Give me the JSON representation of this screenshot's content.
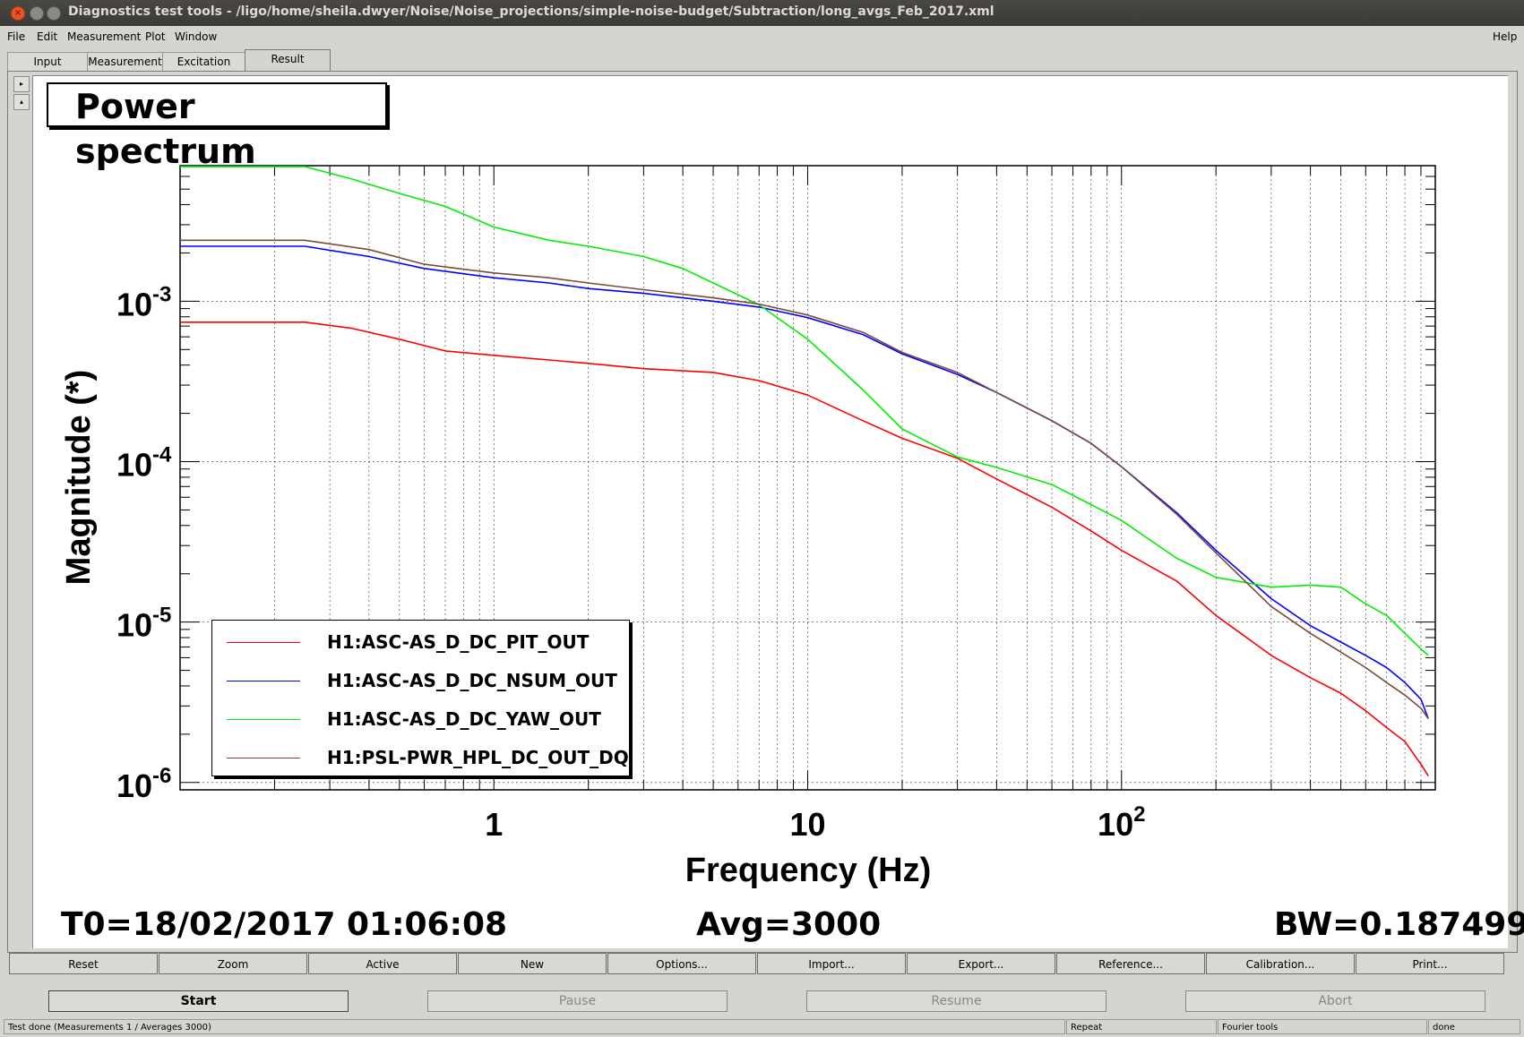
{
  "window": {
    "title": "Diagnostics test tools - /ligo/home/sheila.dwyer/Noise/Noise_projections/simple-noise-budget/Subtraction/long_avgs_Feb_2017.xml",
    "close_glyph": "×"
  },
  "menu": {
    "items": [
      "File",
      "Edit",
      "Measurement",
      "Plot",
      "Window"
    ],
    "help": "Help"
  },
  "tabs": [
    "Input",
    "Measurement",
    "Excitation",
    "Result"
  ],
  "active_tab": "Result",
  "scroll": {
    "up": "▸",
    "down": "▴"
  },
  "plot_title": "Power spectrum",
  "stats": {
    "t0": "T0=18/02/2017 01:06:08",
    "avg": "Avg=3000",
    "bw": "BW=0.187499"
  },
  "toolbar": [
    "Reset",
    "Zoom",
    "Active",
    "New",
    "Options...",
    "Import...",
    "Export...",
    "Reference...",
    "Calibration...",
    "Print..."
  ],
  "run_buttons": [
    {
      "label": "Start",
      "enabled": true
    },
    {
      "label": "Pause",
      "enabled": false
    },
    {
      "label": "Resume",
      "enabled": false
    },
    {
      "label": "Abort",
      "enabled": false
    }
  ],
  "status": {
    "main": "Test done (Measurements 1 / Averages 3000)",
    "repeat": "Repeat",
    "tool": "Fourier tools",
    "state": "done"
  },
  "chart_data": {
    "type": "line",
    "xlabel": "Frequency (Hz)",
    "ylabel": "Magnitude (*)",
    "xscale": "log",
    "yscale": "log",
    "xlim": [
      0.1,
      1000
    ],
    "ylim": [
      9e-07,
      0.007
    ],
    "xticks": [
      {
        "value": 1,
        "label": "1"
      },
      {
        "value": 10,
        "label": "10"
      },
      {
        "value": 100,
        "label": "10",
        "exp": "2"
      }
    ],
    "yticks": [
      {
        "value": 0.001,
        "base": "10",
        "exp": "-3"
      },
      {
        "value": 0.0001,
        "base": "10",
        "exp": "-4"
      },
      {
        "value": 1e-05,
        "base": "10",
        "exp": "-5"
      },
      {
        "value": 1e-06,
        "base": "10",
        "exp": "-6"
      }
    ],
    "grid": true,
    "legend_position": "bottom-left",
    "series": [
      {
        "name": "H1:ASC-AS_D_DC_PIT_OUT",
        "color": "#ff0000",
        "points": [
          [
            0.1,
            0.00074
          ],
          [
            0.25,
            0.00074
          ],
          [
            0.35,
            0.00068
          ],
          [
            0.5,
            0.00058
          ],
          [
            0.7,
            0.00049
          ],
          [
            1,
            0.00046
          ],
          [
            1.5,
            0.00043
          ],
          [
            2,
            0.00041
          ],
          [
            3,
            0.00038
          ],
          [
            5,
            0.00036
          ],
          [
            7,
            0.00032
          ],
          [
            10,
            0.00026
          ],
          [
            15,
            0.00018
          ],
          [
            20,
            0.00014
          ],
          [
            30,
            0.000105
          ],
          [
            40,
            7.8e-05
          ],
          [
            60,
            5.2e-05
          ],
          [
            80,
            3.7e-05
          ],
          [
            100,
            2.8e-05
          ],
          [
            150,
            1.8e-05
          ],
          [
            200,
            1.1e-05
          ],
          [
            300,
            6.2e-06
          ],
          [
            400,
            4.5e-06
          ],
          [
            500,
            3.6e-06
          ],
          [
            600,
            2.8e-06
          ],
          [
            700,
            2.2e-06
          ],
          [
            800,
            1.8e-06
          ],
          [
            900,
            1.3e-06
          ],
          [
            950,
            1.1e-06
          ]
        ]
      },
      {
        "name": "H1:ASC-AS_D_DC_NSUM_OUT",
        "color": "#0000ff",
        "points": [
          [
            0.1,
            0.0022
          ],
          [
            0.25,
            0.0022
          ],
          [
            0.4,
            0.0019
          ],
          [
            0.6,
            0.0016
          ],
          [
            1,
            0.0014
          ],
          [
            1.5,
            0.0013
          ],
          [
            2,
            0.0012
          ],
          [
            3,
            0.00112
          ],
          [
            5,
            0.001
          ],
          [
            7,
            0.00092
          ],
          [
            10,
            0.00079
          ],
          [
            15,
            0.00062
          ],
          [
            20,
            0.00047
          ],
          [
            30,
            0.00035
          ],
          [
            40,
            0.00027
          ],
          [
            60,
            0.00018
          ],
          [
            80,
            0.00013
          ],
          [
            100,
            9.3e-05
          ],
          [
            150,
            4.8e-05
          ],
          [
            200,
            2.8e-05
          ],
          [
            300,
            1.4e-05
          ],
          [
            400,
            9.5e-06
          ],
          [
            500,
            7.5e-06
          ],
          [
            600,
            6.2e-06
          ],
          [
            700,
            5.2e-06
          ],
          [
            800,
            4.2e-06
          ],
          [
            900,
            3.3e-06
          ],
          [
            950,
            2.5e-06
          ]
        ]
      },
      {
        "name": "H1:ASC-AS_D_DC_YAW_OUT",
        "color": "#00ee00",
        "points": [
          [
            0.1,
            0.0069
          ],
          [
            0.25,
            0.0069
          ],
          [
            0.35,
            0.0058
          ],
          [
            0.5,
            0.0047
          ],
          [
            0.7,
            0.0039
          ],
          [
            1,
            0.0029
          ],
          [
            1.5,
            0.0024
          ],
          [
            2,
            0.0022
          ],
          [
            3,
            0.0019
          ],
          [
            4,
            0.0016
          ],
          [
            5,
            0.0013
          ],
          [
            7,
            0.00095
          ],
          [
            10,
            0.00058
          ],
          [
            15,
            0.00028
          ],
          [
            20,
            0.00016
          ],
          [
            30,
            0.000107
          ],
          [
            40,
            9.2e-05
          ],
          [
            60,
            7.2e-05
          ],
          [
            80,
            5.4e-05
          ],
          [
            100,
            4.3e-05
          ],
          [
            150,
            2.5e-05
          ],
          [
            200,
            1.9e-05
          ],
          [
            300,
            1.65e-05
          ],
          [
            400,
            1.7e-05
          ],
          [
            500,
            1.65e-05
          ],
          [
            600,
            1.3e-05
          ],
          [
            700,
            1.1e-05
          ],
          [
            800,
            8.5e-06
          ],
          [
            900,
            6.8e-06
          ],
          [
            950,
            6.2e-06
          ]
        ]
      },
      {
        "name": "H1:PSL-PWR_HPL_DC_OUT_DQ",
        "color": "#7b4a3a",
        "points": [
          [
            0.1,
            0.0024
          ],
          [
            0.25,
            0.0024
          ],
          [
            0.4,
            0.0021
          ],
          [
            0.6,
            0.0017
          ],
          [
            1,
            0.0015
          ],
          [
            1.5,
            0.0014
          ],
          [
            2,
            0.0013
          ],
          [
            3,
            0.00118
          ],
          [
            5,
            0.00105
          ],
          [
            7,
            0.00096
          ],
          [
            10,
            0.00082
          ],
          [
            15,
            0.00064
          ],
          [
            20,
            0.00048
          ],
          [
            30,
            0.00036
          ],
          [
            40,
            0.00027
          ],
          [
            60,
            0.00018
          ],
          [
            80,
            0.00013
          ],
          [
            100,
            9.3e-05
          ],
          [
            150,
            4.7e-05
          ],
          [
            200,
            2.7e-05
          ],
          [
            300,
            1.25e-05
          ],
          [
            400,
            8.5e-06
          ],
          [
            500,
            6.5e-06
          ],
          [
            600,
            5.2e-06
          ],
          [
            700,
            4.2e-06
          ],
          [
            800,
            3.5e-06
          ],
          [
            900,
            2.9e-06
          ],
          [
            950,
            2.5e-06
          ]
        ]
      }
    ]
  }
}
